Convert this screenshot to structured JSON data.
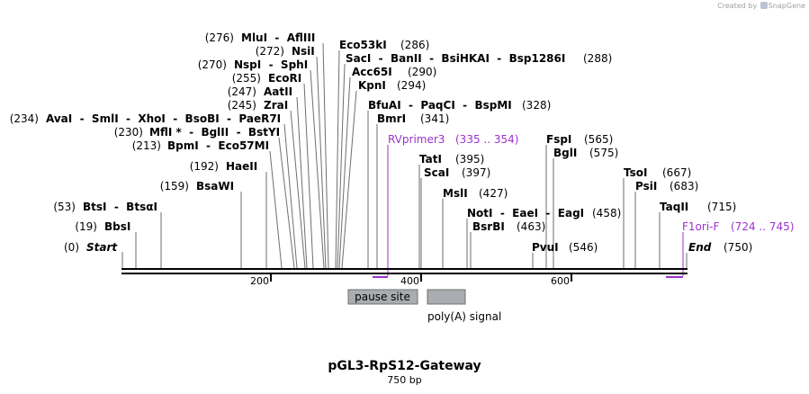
{
  "credit": {
    "text": "Created by",
    "brand": "SnapGene"
  },
  "plasmid": {
    "name": "pGL3-RpS12-Gateway",
    "length_label": "750 bp",
    "length": 750
  },
  "sites": [
    {
      "pos": "(0)",
      "name": "Start",
      "italic": true
    },
    {
      "pos": "(19)",
      "name": "BbsI"
    },
    {
      "pos": "(53)",
      "name": "BtsI  -  BtsαI"
    },
    {
      "pos": "(159)",
      "name": "BsaWI"
    },
    {
      "pos": "(192)",
      "name": "HaeII"
    },
    {
      "pos": "(213)",
      "name": "BpmI  -  Eco57MI"
    },
    {
      "pos": "(230)",
      "name": "MflI *  -  BglII  -  BstYI"
    },
    {
      "pos": "(234)",
      "name": "AvaI  -  SmlI  -  XhoI  -  BsoBI  -  PaeR7I"
    },
    {
      "pos": "(245)",
      "name": "ZraI"
    },
    {
      "pos": "(247)",
      "name": "AatII"
    },
    {
      "pos": "(255)",
      "name": "EcoRI"
    },
    {
      "pos": "(270)",
      "name": "NspI  -  SphI"
    },
    {
      "pos": "(272)",
      "name": "NsiI"
    },
    {
      "pos": "(276)",
      "name": "MluI  -  AflIII"
    },
    {
      "pos": "(286)",
      "name": "Eco53kI"
    },
    {
      "pos": "(288)",
      "name": "SacI  -  BanII  -  BsiHKAI  -  Bsp1286I"
    },
    {
      "pos": "(290)",
      "name": "Acc65I"
    },
    {
      "pos": "(294)",
      "name": "KpnI"
    },
    {
      "pos": "(328)",
      "name": "BfuAI  -  PaqCI  -  BspMI"
    },
    {
      "pos": "(341)",
      "name": "BmrI"
    },
    {
      "pos": "(395)",
      "name": "TatI"
    },
    {
      "pos": "(397)",
      "name": "ScaI"
    },
    {
      "pos": "(427)",
      "name": "MslI"
    },
    {
      "pos": "(458)",
      "name": "NotI  -  EaeI  -  EagI"
    },
    {
      "pos": "(463)",
      "name": "BsrBI"
    },
    {
      "pos": "(546)",
      "name": "PvuI"
    },
    {
      "pos": "(565)",
      "name": "FspI"
    },
    {
      "pos": "(575)",
      "name": "BglI"
    },
    {
      "pos": "(667)",
      "name": "TsoI"
    },
    {
      "pos": "(683)",
      "name": "PsiI"
    },
    {
      "pos": "(715)",
      "name": "TaqII"
    },
    {
      "pos": "(750)",
      "name": "End",
      "italic": true
    }
  ],
  "primers": [
    {
      "name": "RVprimer3",
      "range": "(335 .. 354)"
    },
    {
      "name": "F1ori-F",
      "range": "(724 .. 745)"
    }
  ],
  "ruler": {
    "ticks": [
      "200",
      "400",
      "600"
    ]
  },
  "features": [
    {
      "name": "pause site",
      "show_inside": true
    },
    {
      "name": "poly(A) signal",
      "show_inside": false
    }
  ],
  "colors": {
    "primer": "#9a32cd",
    "feature_fill": "#a9acb0",
    "line": "#6e6e6e"
  }
}
